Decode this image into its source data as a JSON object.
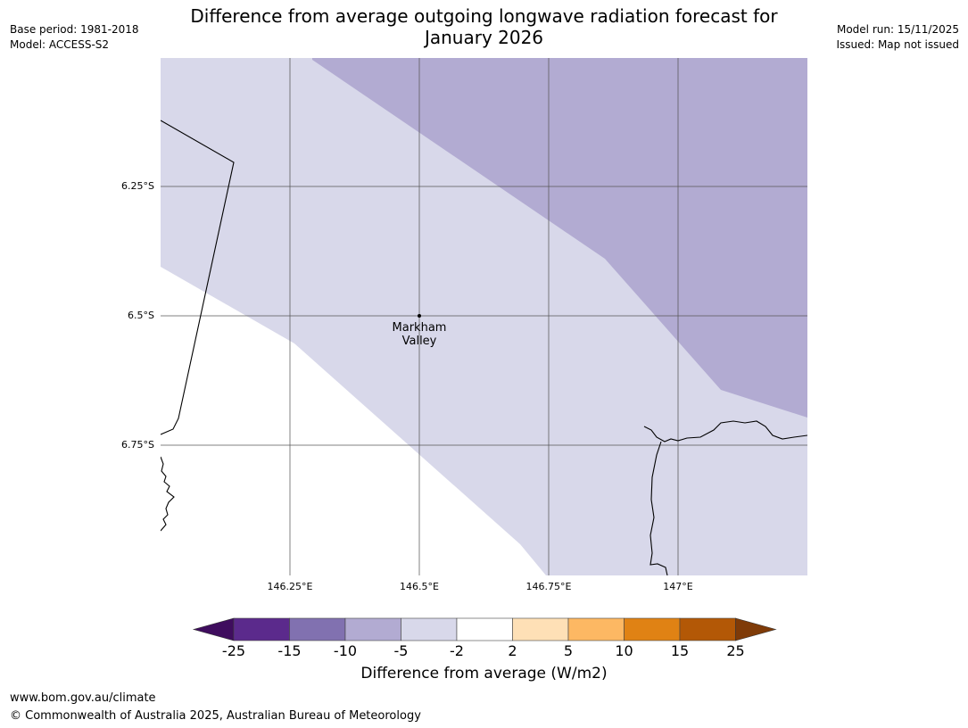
{
  "header": {
    "title_line1": "Difference from average outgoing longwave radiation forecast for",
    "title_line2": "January 2026",
    "base_period": "Base period: 1981-2018",
    "model": "Model: ACCESS-S2",
    "model_run": "Model run: 15/11/2025",
    "issued": "Issued: Map not issued"
  },
  "map": {
    "lat_labels": [
      "6.25°S",
      "6.5°S",
      "6.75°S"
    ],
    "lon_labels": [
      "146.25°E",
      "146.5°E",
      "146.75°E",
      "147°E"
    ],
    "place": {
      "name_line1": "Markham",
      "name_line2": "Valley",
      "lon": 146.5,
      "lat": -6.5
    },
    "colors": {
      "band_minus2_minus5": "#d8d8ea",
      "band_minus5_minus10": "#b2abd2",
      "gridline": "#555555",
      "coast": "#000000"
    }
  },
  "colorbar": {
    "title": "Difference from average (W/m2)",
    "ticks": [
      "-25",
      "-15",
      "-10",
      "-5",
      "-2",
      "2",
      "5",
      "10",
      "15",
      "25"
    ],
    "colors": [
      "#3f0d5e",
      "#5b2a8c",
      "#8171b0",
      "#b2abd2",
      "#d8d8ea",
      "#ffffff",
      "#fee0b6",
      "#fdb863",
      "#e08214",
      "#b35806",
      "#7f3b08"
    ]
  },
  "footer": {
    "url": "www.bom.gov.au/climate",
    "copyright": "© Commonwealth of Australia 2025, Australian Bureau of Meteorology"
  }
}
